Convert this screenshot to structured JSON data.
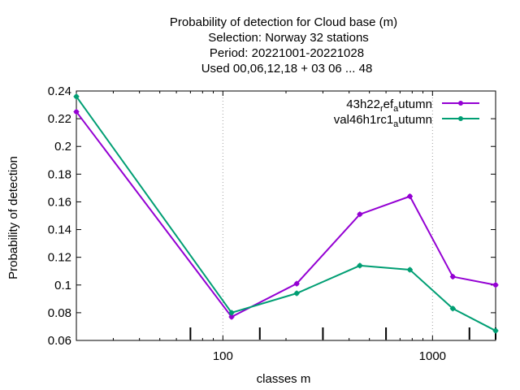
{
  "chart_data": {
    "type": "line",
    "title_lines": [
      "Probability of detection  for Cloud base (m)",
      "Selection: Norway     32 stations",
      "Period: 20221001-20221028",
      "Used  00,06,12,18  + 03 06 ... 48"
    ],
    "xlabel": "classes m",
    "ylabel": "Probability of detection",
    "xscale": "log",
    "xlim": [
      20,
      2000
    ],
    "ylim": [
      0.06,
      0.24
    ],
    "x_ticks": [
      100,
      1000
    ],
    "x_tick_labels": [
      "100",
      "1000"
    ],
    "y_ticks": [
      0.06,
      0.08,
      0.1,
      0.12,
      0.14,
      0.16,
      0.18,
      0.2,
      0.22,
      0.24
    ],
    "y_tick_labels": [
      "0.06",
      "0.08",
      "0.1",
      "0.12",
      "0.14",
      "0.16",
      "0.18",
      "0.2",
      "0.22",
      "0.24"
    ],
    "grid": true,
    "legend_position": "top-right",
    "extra_bottom_ticks": [
      70,
      150,
      300,
      600,
      1500,
      2000
    ],
    "series": [
      {
        "name_main": "43h22",
        "name_sub1": "r",
        "name_mid": "ef",
        "name_sub2": "a",
        "name_end": "utumn",
        "color": "#9400d3",
        "x": [
          20,
          110,
          225,
          450,
          780,
          1250,
          2000
        ],
        "y": [
          0.225,
          0.077,
          0.101,
          0.151,
          0.164,
          0.106,
          0.1
        ]
      },
      {
        "name_main": "val46h1rc1",
        "name_sub1": "",
        "name_mid": "",
        "name_sub2": "a",
        "name_end": "utumn",
        "color": "#009e73",
        "x": [
          20,
          110,
          225,
          450,
          780,
          1250,
          2000
        ],
        "y": [
          0.236,
          0.08,
          0.094,
          0.114,
          0.111,
          0.083,
          0.067
        ]
      }
    ]
  }
}
